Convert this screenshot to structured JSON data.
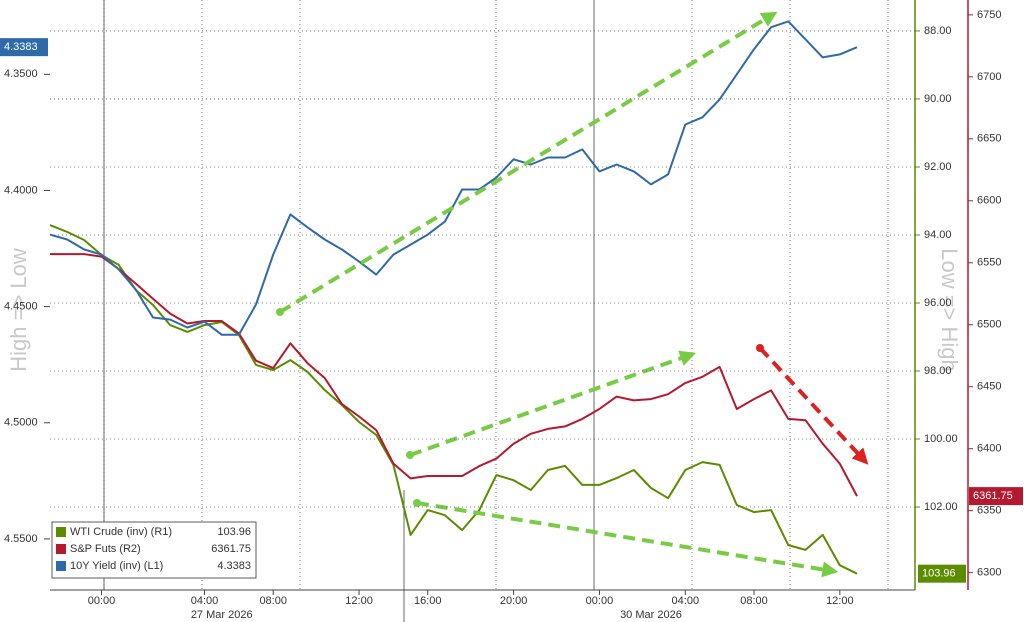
{
  "chart_data": {
    "type": "line",
    "categories": [
      null,
      null,
      null,
      "00:00",
      null,
      null,
      null,
      null,
      null,
      "04:00",
      null,
      null,
      null,
      "08:00",
      null,
      null,
      null,
      null,
      "12:00",
      null,
      null,
      null,
      "16:00",
      null,
      null,
      null,
      null,
      "20:00",
      null,
      null,
      null,
      null,
      "00:00",
      null,
      null,
      null,
      null,
      "04:00",
      null,
      null,
      null,
      "08:00",
      null,
      null,
      null,
      null,
      "12:00",
      null
    ],
    "x_date_labels": [
      {
        "index": 10,
        "label": "27 Mar 2026"
      },
      {
        "index": 35,
        "label": "30 Mar 2026"
      }
    ],
    "y_axis_label": "High => Low",
    "y2_axis_label": "Low => High",
    "ylim": [
      4.318,
      4.572
    ],
    "y_inverted": true,
    "yticks": [
      {
        "value": 4.35,
        "label": "4.3500"
      },
      {
        "value": 4.4,
        "label": "4.4000"
      },
      {
        "value": 4.45,
        "label": "4.4500"
      },
      {
        "value": 4.5,
        "label": "4.5000"
      },
      {
        "value": 4.55,
        "label": "4.5500"
      }
    ],
    "y2lim": [
      87.09,
      104.44
    ],
    "y2_inverted": true,
    "y2ticks": [
      {
        "value": 88,
        "label": "88.00"
      },
      {
        "value": 90,
        "label": "90.00"
      },
      {
        "value": 92,
        "label": "92.00"
      },
      {
        "value": 94,
        "label": "94.00"
      },
      {
        "value": 96,
        "label": "96.00"
      },
      {
        "value": 98,
        "label": "98.00"
      },
      {
        "value": 100,
        "label": "100.00"
      },
      {
        "value": 102,
        "label": "102.00"
      }
    ],
    "y3lim": [
      6286,
      6762
    ],
    "y3ticks": [
      6750,
      6700,
      6650,
      6600,
      6550,
      6500,
      6450,
      6400,
      6350,
      6300
    ],
    "grid": true,
    "legend": "lower left",
    "series": [
      {
        "name": "WTI Crude (inv) (R1)",
        "color": "#5b8c00",
        "axis": "y2",
        "values": [
          93.71,
          93.91,
          94.15,
          94.59,
          94.88,
          95.62,
          96.06,
          96.65,
          96.85,
          96.65,
          96.56,
          96.94,
          97.82,
          97.97,
          97.68,
          98.03,
          98.56,
          99.0,
          99.5,
          99.88,
          100.76,
          102.82,
          102.09,
          102.24,
          102.68,
          102.09,
          101.06,
          101.21,
          101.5,
          100.91,
          100.79,
          101.35,
          101.35,
          101.15,
          100.91,
          101.44,
          101.74,
          100.91,
          100.68,
          100.76,
          101.94,
          102.15,
          102.09,
          103.12,
          103.26,
          102.82,
          103.71,
          103.96
        ]
      },
      {
        "name": "S&P Futs (R2)",
        "color": "#b3192f",
        "axis": "y3",
        "values": [
          6557,
          6557,
          6557,
          6555,
          6545,
          6533,
          6521,
          6509,
          6501,
          6503,
          6503,
          6493,
          6471,
          6465,
          6485,
          6469,
          6457,
          6436,
          6426,
          6415,
          6388,
          6376,
          6378,
          6378,
          6378,
          6386,
          6392,
          6404,
          6412,
          6416,
          6418,
          6424,
          6432,
          6442,
          6439,
          6440,
          6444,
          6453,
          6458,
          6466,
          6432,
          6440,
          6447,
          6424,
          6423,
          6404,
          6388,
          6361.75
        ]
      },
      {
        "name": "10Y Yield (inv) (L1)",
        "color": "#2e6aa8",
        "axis": "y",
        "values": [
          4.419,
          4.4211,
          4.4254,
          4.4276,
          4.434,
          4.4427,
          4.4547,
          4.4556,
          4.459,
          4.4565,
          4.4621,
          4.4621,
          4.4491,
          4.4276,
          4.4103,
          4.4159,
          4.4211,
          4.4254,
          4.4306,
          4.4362,
          4.4276,
          4.4233,
          4.419,
          4.4134,
          4.3996,
          4.3996,
          4.3944,
          4.3866,
          4.3888,
          4.3858,
          4.3858,
          4.3823,
          4.3918,
          4.3888,
          4.3918,
          4.3974,
          4.3931,
          4.3716,
          4.3685,
          4.3608,
          4.35,
          4.3392,
          4.3297,
          4.3272,
          4.3349,
          4.3427,
          4.3414,
          4.3383
        ]
      }
    ]
  }
}
